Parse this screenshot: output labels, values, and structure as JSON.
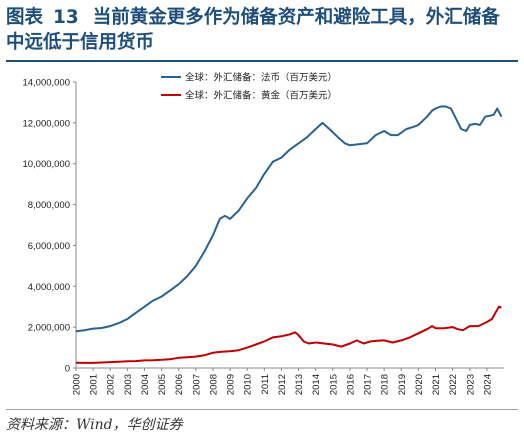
{
  "header": {
    "fig_label": "图表",
    "fig_number": "13",
    "title": "当前黄金更多作为储备资产和避险工具，外汇储备中远低于信用货币"
  },
  "footer": {
    "source": "资料来源：Wind，华创证券"
  },
  "colors": {
    "fx": "#2a6190",
    "gold": "#c00000",
    "title": "#1f4e79",
    "axis": "#888888"
  },
  "chart_data": {
    "type": "line",
    "title": "",
    "xlabel": "",
    "ylabel": "",
    "ylim": [
      0,
      14000000
    ],
    "yticks": [
      "0",
      "2,000,000",
      "4,000,000",
      "6,000,000",
      "8,000,000",
      "10,000,000",
      "12,000,000",
      "14,000,000"
    ],
    "xticks": [
      "2000",
      "2001",
      "2002",
      "2003",
      "2004",
      "2005",
      "2006",
      "2007",
      "2008",
      "2009",
      "2010",
      "2011",
      "2012",
      "2013",
      "2014",
      "2015",
      "2016",
      "2017",
      "2018",
      "2019",
      "2020",
      "2021",
      "2022",
      "2023",
      "2024"
    ],
    "grid": false,
    "legend_position": "top-left",
    "series": [
      {
        "name": "全球：外汇储备：法币（百万美元）",
        "color": "#2a6190",
        "points": [
          [
            2000.0,
            1800000
          ],
          [
            2000.5,
            1850000
          ],
          [
            2001.0,
            1930000
          ],
          [
            2001.5,
            1960000
          ],
          [
            2002.0,
            2050000
          ],
          [
            2002.5,
            2200000
          ],
          [
            2003.0,
            2400000
          ],
          [
            2003.5,
            2700000
          ],
          [
            2004.0,
            3000000
          ],
          [
            2004.5,
            3300000
          ],
          [
            2005.0,
            3500000
          ],
          [
            2005.5,
            3800000
          ],
          [
            2006.0,
            4100000
          ],
          [
            2006.5,
            4500000
          ],
          [
            2007.0,
            5000000
          ],
          [
            2007.5,
            5700000
          ],
          [
            2008.0,
            6500000
          ],
          [
            2008.4,
            7300000
          ],
          [
            2008.7,
            7450000
          ],
          [
            2009.0,
            7300000
          ],
          [
            2009.5,
            7700000
          ],
          [
            2010.0,
            8300000
          ],
          [
            2010.5,
            8800000
          ],
          [
            2011.0,
            9500000
          ],
          [
            2011.5,
            10100000
          ],
          [
            2012.0,
            10300000
          ],
          [
            2012.5,
            10700000
          ],
          [
            2013.0,
            11000000
          ],
          [
            2013.5,
            11300000
          ],
          [
            2014.0,
            11700000
          ],
          [
            2014.4,
            12000000
          ],
          [
            2014.8,
            11700000
          ],
          [
            2015.3,
            11300000
          ],
          [
            2015.7,
            11000000
          ],
          [
            2016.0,
            10900000
          ],
          [
            2016.5,
            10950000
          ],
          [
            2017.0,
            11000000
          ],
          [
            2017.5,
            11400000
          ],
          [
            2018.0,
            11600000
          ],
          [
            2018.4,
            11400000
          ],
          [
            2018.8,
            11400000
          ],
          [
            2019.3,
            11700000
          ],
          [
            2019.7,
            11800000
          ],
          [
            2020.0,
            11900000
          ],
          [
            2020.5,
            12300000
          ],
          [
            2020.8,
            12600000
          ],
          [
            2021.0,
            12700000
          ],
          [
            2021.3,
            12800000
          ],
          [
            2021.6,
            12800000
          ],
          [
            2021.9,
            12700000
          ],
          [
            2022.2,
            12200000
          ],
          [
            2022.5,
            11700000
          ],
          [
            2022.8,
            11600000
          ],
          [
            2023.0,
            11900000
          ],
          [
            2023.3,
            11950000
          ],
          [
            2023.6,
            11900000
          ],
          [
            2023.9,
            12300000
          ],
          [
            2024.2,
            12350000
          ],
          [
            2024.4,
            12400000
          ],
          [
            2024.6,
            12700000
          ],
          [
            2024.85,
            12300000
          ]
        ]
      },
      {
        "name": "全球：外汇储备：黄金（百万美元）",
        "color": "#c00000",
        "points": [
          [
            2000.0,
            260000
          ],
          [
            2000.5,
            250000
          ],
          [
            2001.0,
            250000
          ],
          [
            2001.5,
            270000
          ],
          [
            2002.0,
            290000
          ],
          [
            2002.5,
            310000
          ],
          [
            2003.0,
            330000
          ],
          [
            2003.5,
            340000
          ],
          [
            2004.0,
            370000
          ],
          [
            2004.5,
            380000
          ],
          [
            2005.0,
            400000
          ],
          [
            2005.5,
            430000
          ],
          [
            2006.0,
            500000
          ],
          [
            2006.5,
            530000
          ],
          [
            2007.0,
            560000
          ],
          [
            2007.5,
            620000
          ],
          [
            2008.0,
            750000
          ],
          [
            2008.5,
            800000
          ],
          [
            2009.0,
            820000
          ],
          [
            2009.5,
            870000
          ],
          [
            2010.0,
            1000000
          ],
          [
            2010.5,
            1150000
          ],
          [
            2011.0,
            1300000
          ],
          [
            2011.5,
            1500000
          ],
          [
            2012.0,
            1550000
          ],
          [
            2012.5,
            1650000
          ],
          [
            2012.8,
            1750000
          ],
          [
            2013.0,
            1600000
          ],
          [
            2013.3,
            1300000
          ],
          [
            2013.6,
            1200000
          ],
          [
            2014.0,
            1250000
          ],
          [
            2014.5,
            1200000
          ],
          [
            2015.0,
            1150000
          ],
          [
            2015.5,
            1050000
          ],
          [
            2016.0,
            1200000
          ],
          [
            2016.4,
            1350000
          ],
          [
            2016.8,
            1200000
          ],
          [
            2017.2,
            1300000
          ],
          [
            2017.6,
            1330000
          ],
          [
            2018.0,
            1350000
          ],
          [
            2018.5,
            1250000
          ],
          [
            2019.0,
            1350000
          ],
          [
            2019.5,
            1500000
          ],
          [
            2020.0,
            1700000
          ],
          [
            2020.5,
            1900000
          ],
          [
            2020.8,
            2050000
          ],
          [
            2021.0,
            1950000
          ],
          [
            2021.5,
            1950000
          ],
          [
            2022.0,
            2000000
          ],
          [
            2022.3,
            1900000
          ],
          [
            2022.6,
            1850000
          ],
          [
            2023.0,
            2050000
          ],
          [
            2023.5,
            2050000
          ],
          [
            2024.0,
            2250000
          ],
          [
            2024.3,
            2400000
          ],
          [
            2024.5,
            2700000
          ],
          [
            2024.7,
            3000000
          ],
          [
            2024.85,
            2950000
          ]
        ]
      }
    ]
  }
}
